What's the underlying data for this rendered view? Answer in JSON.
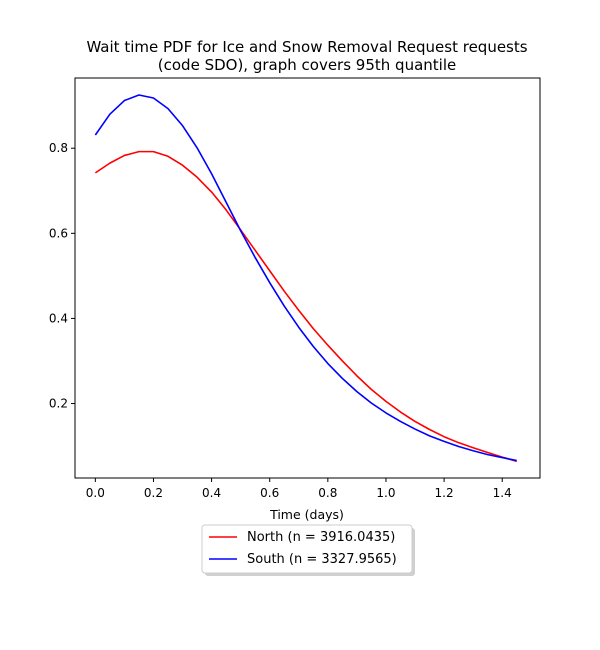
{
  "chart_data": {
    "type": "line",
    "title_line1": "Wait time PDF for Ice and Snow Removal Request  requests",
    "title_line2": "(code SDO), graph covers 95th quantile",
    "xlabel": "Time (days)",
    "ylabel": "",
    "xlim": [
      -0.07,
      1.53
    ],
    "ylim": [
      0.025,
      0.965
    ],
    "xticks": [
      0.0,
      0.2,
      0.4,
      0.6,
      0.8,
      1.0,
      1.2,
      1.4
    ],
    "xtick_labels": [
      "0.0",
      "0.2",
      "0.4",
      "0.6",
      "0.8",
      "1.0",
      "1.2",
      "1.4"
    ],
    "yticks": [
      0.2,
      0.4,
      0.6,
      0.8
    ],
    "ytick_labels": [
      "0.2",
      "0.4",
      "0.6",
      "0.8"
    ],
    "grid": false,
    "legend_position": "below-center",
    "series": [
      {
        "name": "North (n = 3916.0435)",
        "color": "#ff0000",
        "x": [
          0.0,
          0.05,
          0.1,
          0.15,
          0.2,
          0.25,
          0.3,
          0.35,
          0.4,
          0.45,
          0.5,
          0.55,
          0.6,
          0.65,
          0.7,
          0.75,
          0.8,
          0.85,
          0.9,
          0.95,
          1.0,
          1.05,
          1.1,
          1.15,
          1.2,
          1.25,
          1.3,
          1.35,
          1.4,
          1.45
        ],
        "y": [
          0.742,
          0.765,
          0.783,
          0.792,
          0.792,
          0.781,
          0.76,
          0.732,
          0.697,
          0.655,
          0.608,
          0.56,
          0.512,
          0.464,
          0.419,
          0.376,
          0.337,
          0.3,
          0.265,
          0.233,
          0.205,
          0.18,
          0.158,
          0.139,
          0.122,
          0.108,
          0.096,
          0.085,
          0.074,
          0.064
        ]
      },
      {
        "name": "South (n = 3327.9565)",
        "color": "#0000ff",
        "x": [
          0.0,
          0.05,
          0.1,
          0.15,
          0.2,
          0.25,
          0.3,
          0.35,
          0.4,
          0.45,
          0.5,
          0.55,
          0.6,
          0.65,
          0.7,
          0.75,
          0.8,
          0.85,
          0.9,
          0.95,
          1.0,
          1.05,
          1.1,
          1.15,
          1.2,
          1.25,
          1.3,
          1.35,
          1.4,
          1.45
        ],
        "y": [
          0.831,
          0.88,
          0.912,
          0.925,
          0.918,
          0.893,
          0.853,
          0.801,
          0.74,
          0.673,
          0.606,
          0.543,
          0.484,
          0.429,
          0.379,
          0.334,
          0.294,
          0.259,
          0.228,
          0.201,
          0.178,
          0.158,
          0.14,
          0.124,
          0.111,
          0.099,
          0.089,
          0.08,
          0.073,
          0.066
        ]
      }
    ]
  }
}
